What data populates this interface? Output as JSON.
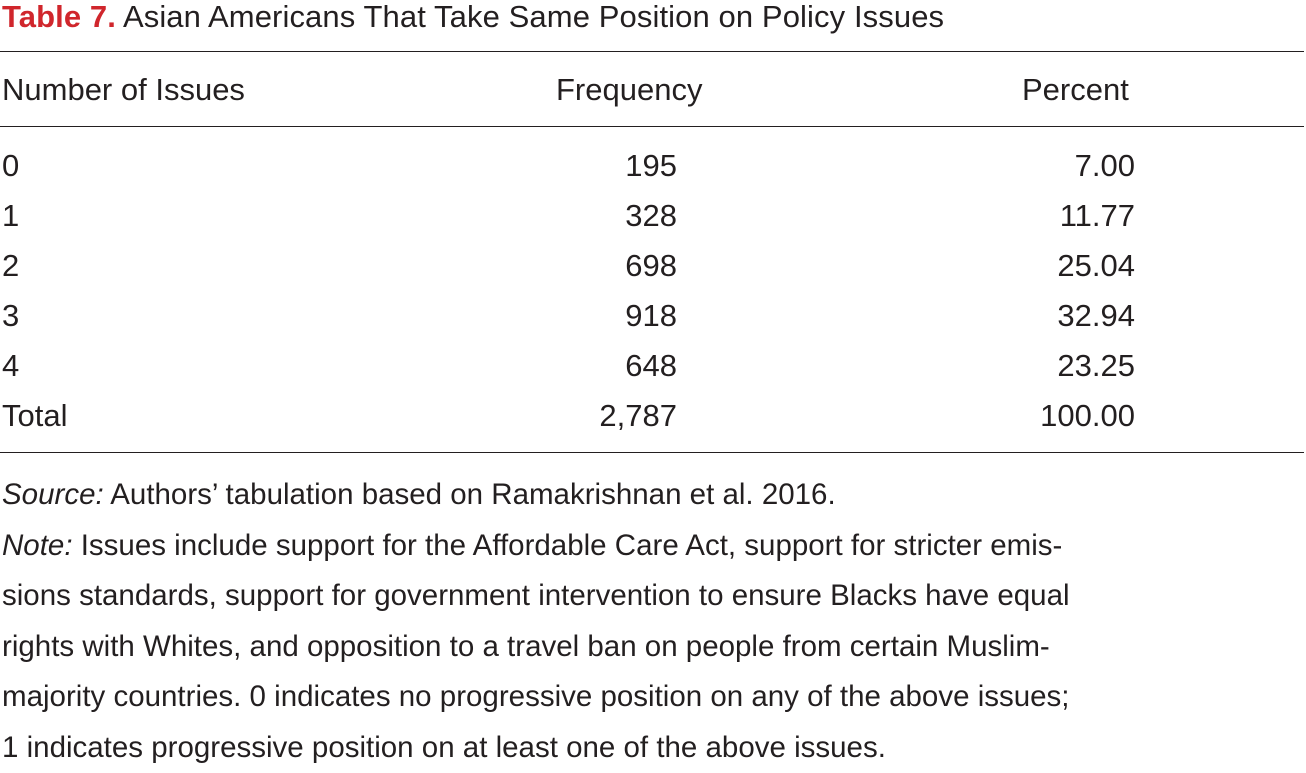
{
  "title": {
    "label": "Table 7.",
    "text": " Asian Americans That Take Same Position on Policy Issues"
  },
  "columns": [
    "Number of Issues",
    "Frequency",
    "Percent"
  ],
  "rows": [
    {
      "issues": "0",
      "frequency": "195",
      "percent": "7.00"
    },
    {
      "issues": "1",
      "frequency": "328",
      "percent": "11.77"
    },
    {
      "issues": "2",
      "frequency": "698",
      "percent": "25.04"
    },
    {
      "issues": "3",
      "frequency": "918",
      "percent": "32.94"
    },
    {
      "issues": "4",
      "frequency": "648",
      "percent": "23.25"
    },
    {
      "issues": "Total",
      "frequency": "2,787",
      "percent": "100.00"
    }
  ],
  "source": {
    "label": "Source:",
    "text": " Authors’ tabulation based on Ramakrishnan et al. 2016."
  },
  "note": {
    "label": "Note:",
    "lines": [
      " Issues include support for the Affordable Care Act, support for stricter emis-",
      "sions standards, support for government intervention to ensure Blacks have equal",
      "rights with Whites, and opposition to a travel ban on people from certain Muslim-",
      "majority countries. 0 indicates no progressive position on any of the above issues;",
      "1 indicates progressive position on at least one of the above issues."
    ]
  },
  "colors": {
    "accent": "#d0262c",
    "text": "#231f20"
  }
}
